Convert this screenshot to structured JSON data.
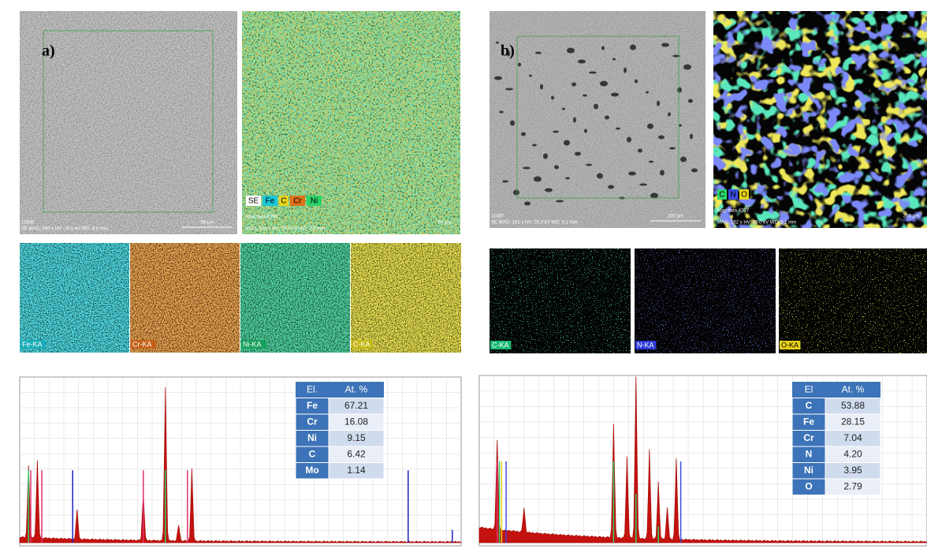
{
  "panels": [
    {
      "label": "a)",
      "sem": {
        "id": "11580",
        "info": "SE MAG: 590 x HV: 20.0 kV WD: 9.0 mm",
        "scale": "50 µm"
      },
      "map": {
        "legend": [
          "SE",
          "Fe",
          "C",
          "Cr",
          "Ni"
        ],
        "info": "Map data 4256",
        "info2": "MAG: 590 x HV: 20.0 kV WD: 9.0 mm",
        "scale": "50 µm"
      },
      "element_maps": [
        "Fe-KA",
        "Cr-KA",
        "Ni-KA",
        "C-KA"
      ],
      "table": {
        "header": [
          "El.",
          "At. %"
        ],
        "rows": [
          [
            "Fe",
            "67.21"
          ],
          [
            "Cr",
            "16.08"
          ],
          [
            "Ni",
            "9.15"
          ],
          [
            "C",
            "6.42"
          ],
          [
            "Mo",
            "1.14"
          ]
        ]
      }
    },
    {
      "label": "b)",
      "sem": {
        "id": "11487",
        "info": "SE MAG: 162 x HV: 20.0 kV WD: 9.1 mm",
        "scale": "200 µm"
      },
      "map": {
        "legend": [
          "C",
          "N",
          "O"
        ],
        "info": "Map data 4207",
        "info2": "MAG: 162 x HV: 20.0 kV WD: 9.1 mm",
        "scale": "200 µm"
      },
      "element_maps": [
        "C-KA",
        "N-KA",
        "O-KA"
      ],
      "table": {
        "header": [
          "El",
          "At. %"
        ],
        "rows": [
          [
            "C",
            "53.88"
          ],
          [
            "Fe",
            "28.15"
          ],
          [
            "Cr",
            "7.04"
          ],
          [
            "N",
            "4.20"
          ],
          [
            "Ni",
            "3.95"
          ],
          [
            "O",
            "2.79"
          ]
        ]
      }
    }
  ]
}
